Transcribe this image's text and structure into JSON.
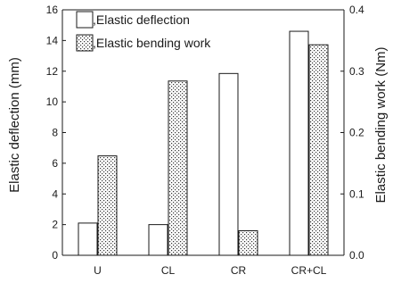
{
  "chart_data": {
    "type": "bar",
    "categories": [
      "U",
      "CL",
      "CR",
      "CR+CL"
    ],
    "series": [
      {
        "name": ",Elastic deflection",
        "axis": "left",
        "fill": "#ffffff",
        "pattern": "none",
        "values": [
          2.1,
          2.0,
          11.85,
          14.6
        ]
      },
      {
        "name": ",Elastic bending work",
        "axis": "right",
        "fill": "#ffffff",
        "pattern": "dotted",
        "values": [
          0.162,
          0.284,
          0.04,
          0.343
        ]
      }
    ],
    "ylabel": "Elastic deflection (mm)",
    "y2label": "Elastic bending work (Nm)",
    "ylim": [
      0,
      16
    ],
    "y2lim": [
      0,
      0.4
    ],
    "yticks": [
      "0",
      "2",
      "4",
      "6",
      "8",
      "10",
      "12",
      "14",
      "16"
    ],
    "y2ticks": [
      "0.0",
      "0.1",
      "0.2",
      "0.3",
      "0.4"
    ],
    "grid": false,
    "legend_position": "top-left"
  }
}
